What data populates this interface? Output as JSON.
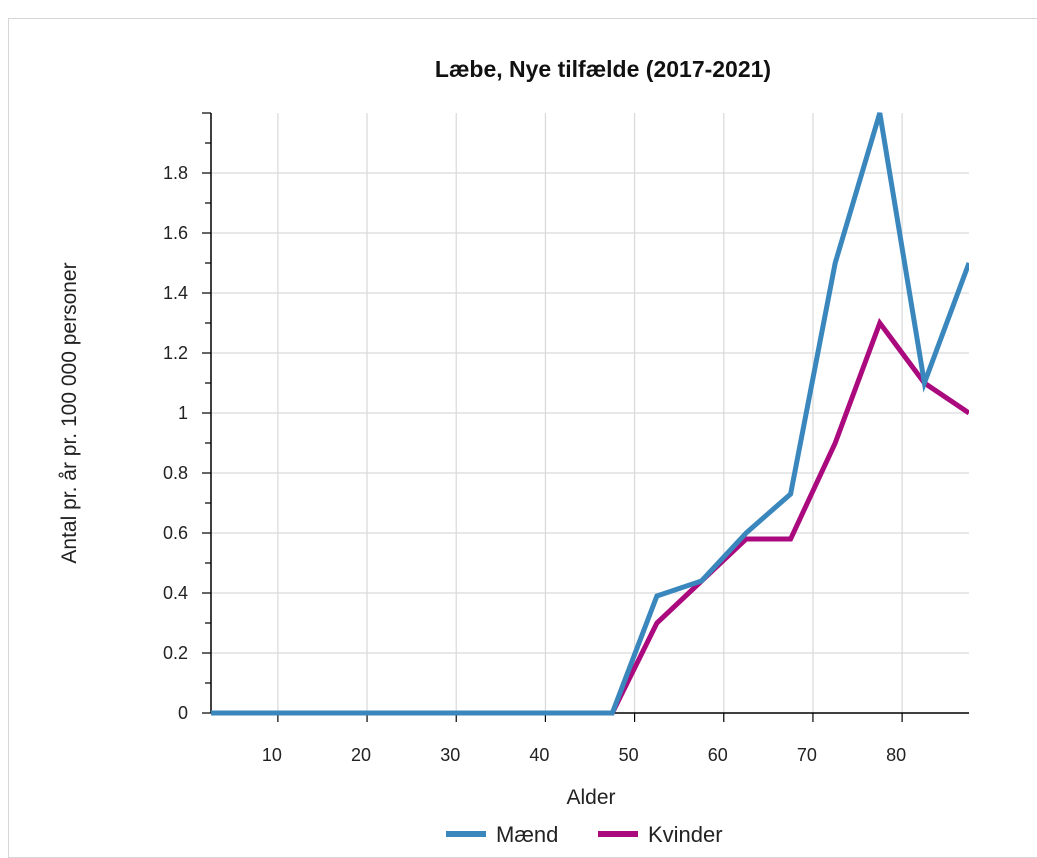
{
  "chart_data": {
    "type": "line",
    "title": "Læbe, Nye tilfælde (2017-2021)",
    "xlabel": "Alder",
    "ylabel": "Antal pr. år pr. 100 000 personer",
    "x": [
      2.5,
      7.5,
      12.5,
      17.5,
      22.5,
      27.5,
      32.5,
      37.5,
      42.5,
      47.5,
      52.5,
      57.5,
      62.5,
      67.5,
      72.5,
      77.5,
      82.5,
      87.5
    ],
    "xlim": [
      2.5,
      87.5
    ],
    "ylim": [
      0,
      2.0
    ],
    "x_ticks": [
      10,
      20,
      30,
      40,
      50,
      60,
      70,
      80
    ],
    "x_tick_labels": [
      "10",
      "20",
      "30",
      "40",
      "50",
      "60",
      "70",
      "80"
    ],
    "y_ticks": [
      0,
      0.2,
      0.4,
      0.6,
      0.8,
      1.0,
      1.2,
      1.4,
      1.6,
      1.8
    ],
    "y_tick_labels": [
      "0",
      "0.2",
      "0.4",
      "0.6",
      "0.8",
      "1",
      "1.2",
      "1.4",
      "1.6",
      "1.8"
    ],
    "grid": true,
    "legend_position": "bottom-center",
    "series": [
      {
        "name": "Mænd",
        "color": "#3a87be",
        "values": [
          0,
          0,
          0,
          0,
          0,
          0,
          0,
          0,
          0,
          0,
          0.39,
          0.44,
          0.6,
          0.73,
          1.5,
          2.0,
          1.1,
          1.5
        ]
      },
      {
        "name": "Kvinder",
        "color": "#aa0a7d",
        "values": [
          0,
          0,
          0,
          0,
          0,
          0,
          0,
          0,
          0,
          0,
          0.3,
          0.44,
          0.58,
          0.58,
          0.9,
          1.3,
          1.1,
          1.0
        ]
      }
    ]
  }
}
